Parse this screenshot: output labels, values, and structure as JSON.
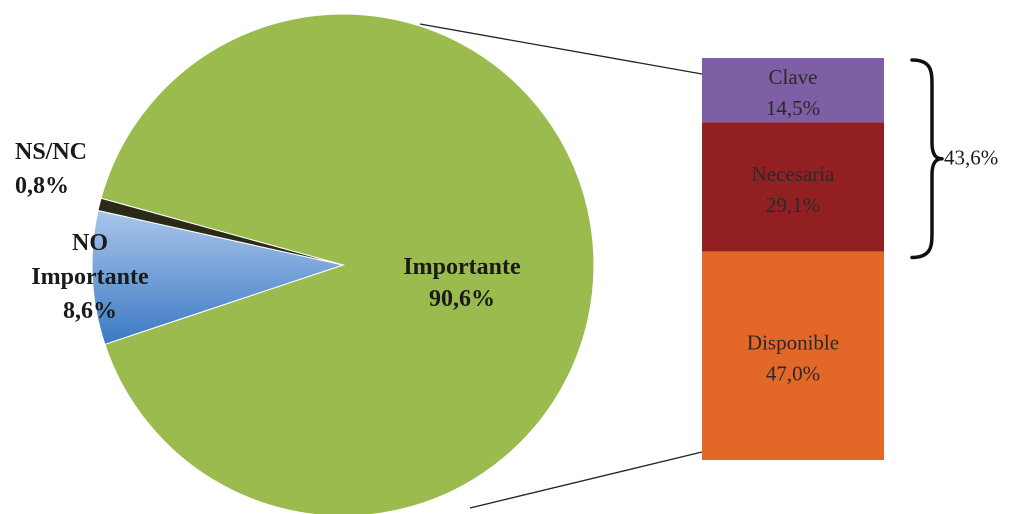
{
  "chart_data": {
    "type": "pie",
    "title": "",
    "pie": {
      "slices": [
        {
          "label": "Importante",
          "value_text": "90,6%",
          "value": 90.6,
          "color": "#9bbb4f"
        },
        {
          "label": "NO Importante",
          "value_text": "8,6%",
          "value": 8.6,
          "color": "#4f86c9"
        },
        {
          "label": "NS/NC",
          "value_text": "0,8%",
          "value": 0.8,
          "color": "#2b2a16"
        }
      ]
    },
    "breakdown": {
      "of": "Importante",
      "type": "stacked-bar",
      "segments": [
        {
          "label": "Clave",
          "value_text": "14,5%",
          "value": 14.5,
          "color": "#7e5ea4"
        },
        {
          "label": "Necesaria",
          "value_text": "29,1%",
          "value": 29.1,
          "color": "#921f22"
        },
        {
          "label": "Disponible",
          "value_text": "47,0%",
          "value": 47.0,
          "color": "#e26728"
        }
      ],
      "bracket": {
        "value_text": "43,6%",
        "value": 43.6,
        "spans": [
          "Clave",
          "Necesaria"
        ]
      }
    }
  }
}
